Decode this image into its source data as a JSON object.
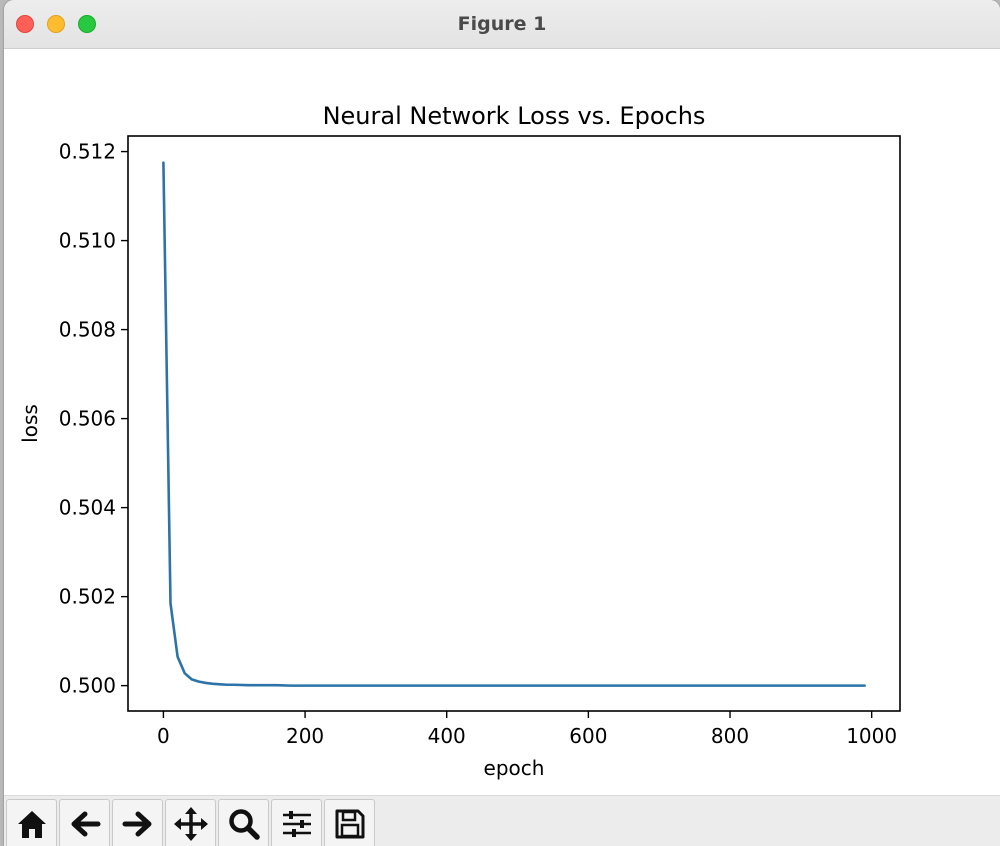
{
  "window": {
    "title": "Figure 1"
  },
  "toolbar": {
    "buttons": [
      {
        "icon": "home-icon"
      },
      {
        "icon": "back-arrow-icon"
      },
      {
        "icon": "forward-arrow-icon"
      },
      {
        "icon": "pan-move-icon"
      },
      {
        "icon": "zoom-magnifier-icon"
      },
      {
        "icon": "configure-subplots-icon"
      },
      {
        "icon": "save-floppy-icon"
      }
    ]
  },
  "chart_data": {
    "type": "line",
    "title": "Neural Network Loss vs. Epochs",
    "xlabel": "epoch",
    "ylabel": "loss",
    "xlim": [
      -50,
      1040
    ],
    "ylim": [
      0.49943,
      0.51235
    ],
    "xticks": [
      0,
      200,
      400,
      600,
      800,
      1000
    ],
    "xtick_labels": [
      "0",
      "200",
      "400",
      "600",
      "800",
      "1000"
    ],
    "yticks": [
      0.5,
      0.502,
      0.504,
      0.506,
      0.508,
      0.51,
      0.512
    ],
    "ytick_labels": [
      "0.500",
      "0.502",
      "0.504",
      "0.506",
      "0.508",
      "0.510",
      "0.512"
    ],
    "grid": false,
    "series_color": "#2e73a8",
    "series": [
      {
        "x": [
          0,
          10,
          20,
          30,
          40,
          50,
          60,
          70,
          80,
          90,
          100,
          120,
          140,
          160,
          180,
          200,
          250,
          300,
          400,
          500,
          600,
          700,
          800,
          900,
          990
        ],
        "y": [
          0.51175,
          0.50185,
          0.50065,
          0.50028,
          0.50014,
          0.50009,
          0.50006,
          0.50004,
          0.50003,
          0.50002,
          0.50002,
          0.50001,
          0.50001,
          0.50001,
          0.5,
          0.5,
          0.5,
          0.5,
          0.5,
          0.5,
          0.5,
          0.5,
          0.5,
          0.5,
          0.5
        ]
      }
    ]
  }
}
